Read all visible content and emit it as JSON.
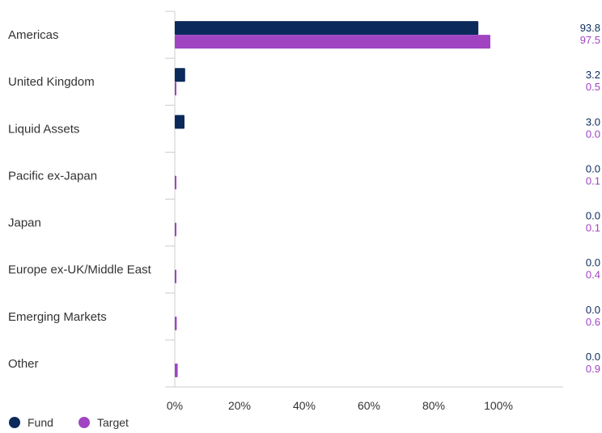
{
  "chart_data": {
    "type": "bar",
    "orientation": "horizontal",
    "categories": [
      "Americas",
      "United Kingdom",
      "Liquid Assets",
      "Pacific ex-Japan",
      "Japan",
      "Europe ex-UK/Middle East",
      "Emerging Markets",
      "Other"
    ],
    "series": [
      {
        "name": "Fund",
        "color": "#0b2a5b",
        "values": [
          93.8,
          3.2,
          3.0,
          0.0,
          0.0,
          0.0,
          0.0,
          0.0
        ],
        "labels": [
          "93.8",
          "3.2",
          "3.0",
          "0.0",
          "0.0",
          "0.0",
          "0.0",
          "0.0"
        ]
      },
      {
        "name": "Target",
        "color": "#a044c2",
        "values": [
          97.5,
          0.5,
          0.0,
          0.1,
          0.1,
          0.4,
          0.6,
          0.9
        ],
        "labels": [
          "97.5",
          "0.5",
          "0.0",
          "0.1",
          "0.1",
          "0.4",
          "0.6",
          "0.9"
        ]
      }
    ],
    "xlim": [
      0,
      120
    ],
    "xticks": [
      0,
      20,
      40,
      60,
      80,
      100
    ],
    "xtick_labels": [
      "0%",
      "20%",
      "40%",
      "60%",
      "80%",
      "100%"
    ],
    "legend_position": "bottom-left",
    "grid": false
  }
}
